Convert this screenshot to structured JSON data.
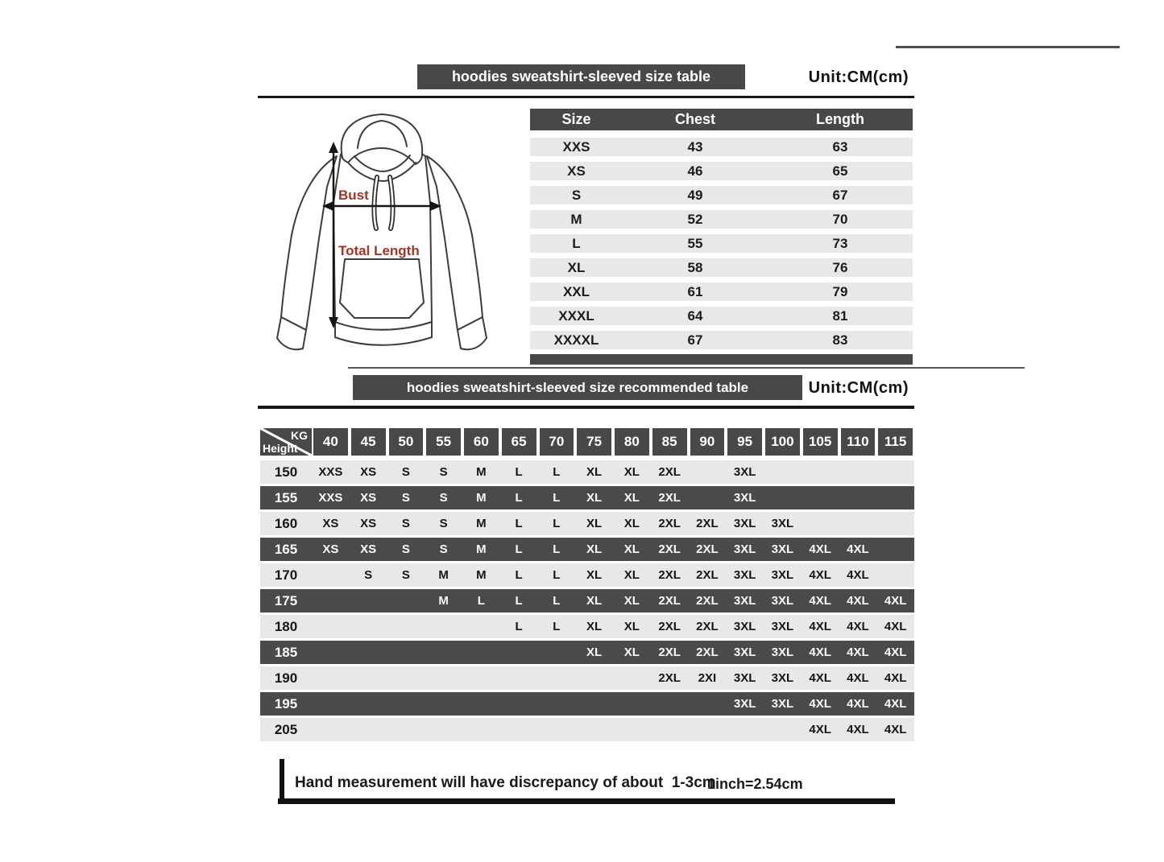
{
  "ui": {
    "unit_label": "Unit:CM(cm)"
  },
  "diagram": {
    "bust_label": "Bust",
    "total_length_label": "Total Length"
  },
  "footer": {
    "note": "Hand measurement will have discrepancy of about  1-3cm",
    "conversion": "1inch=2.54cm"
  },
  "colors": {
    "dark_bar": "#484848",
    "light_row": "#e8e8e8",
    "accent_red": "#a93226"
  },
  "chart_data": [
    {
      "type": "table",
      "title": "hoodies sweatshirt-sleeved size  table",
      "unit": "CM(cm)",
      "columns": [
        "Size",
        "Chest",
        "Length"
      ],
      "rows": [
        [
          "XXS",
          43,
          63
        ],
        [
          "XS",
          46,
          65
        ],
        [
          "S",
          49,
          67
        ],
        [
          "M",
          52,
          70
        ],
        [
          "L",
          55,
          73
        ],
        [
          "XL",
          58,
          76
        ],
        [
          "XXL",
          61,
          79
        ],
        [
          "XXXL",
          64,
          81
        ],
        [
          "XXXXL",
          67,
          83
        ]
      ]
    },
    {
      "type": "table",
      "title": "hoodies sweatshirt-sleeved size recommended table",
      "unit": "CM(cm)",
      "x_axis_label": "KG",
      "y_axis_label": "Height",
      "weight_columns_kg": [
        40,
        45,
        50,
        55,
        60,
        65,
        70,
        75,
        80,
        85,
        90,
        95,
        100,
        105,
        110,
        115
      ],
      "rows": [
        {
          "height_cm": 150,
          "sizes": [
            "XXS",
            "XS",
            "S",
            "S",
            "M",
            "L",
            "L",
            "XL",
            "XL",
            "2XL",
            "",
            "3XL",
            "",
            "",
            "",
            ""
          ]
        },
        {
          "height_cm": 155,
          "sizes": [
            "XXS",
            "XS",
            "S",
            "S",
            "M",
            "L",
            "L",
            "XL",
            "XL",
            "2XL",
            "",
            "3XL",
            "",
            "",
            "",
            ""
          ]
        },
        {
          "height_cm": 160,
          "sizes": [
            "XS",
            "XS",
            "S",
            "S",
            "M",
            "L",
            "L",
            "XL",
            "XL",
            "2XL",
            "2XL",
            "3XL",
            "3XL",
            "",
            "",
            ""
          ]
        },
        {
          "height_cm": 165,
          "sizes": [
            "XS",
            "XS",
            "S",
            "S",
            "M",
            "L",
            "L",
            "XL",
            "XL",
            "2XL",
            "2XL",
            "3XL",
            "3XL",
            "4XL",
            "4XL",
            ""
          ]
        },
        {
          "height_cm": 170,
          "sizes": [
            "",
            "S",
            "S",
            "M",
            "M",
            "L",
            "L",
            "XL",
            "XL",
            "2XL",
            "2XL",
            "3XL",
            "3XL",
            "4XL",
            "4XL",
            ""
          ]
        },
        {
          "height_cm": 175,
          "sizes": [
            "",
            "",
            "",
            "M",
            "L",
            "L",
            "L",
            "XL",
            "XL",
            "2XL",
            "2XL",
            "3XL",
            "3XL",
            "4XL",
            "4XL",
            "4XL"
          ]
        },
        {
          "height_cm": 180,
          "sizes": [
            "",
            "",
            "",
            "",
            "",
            "L",
            "L",
            "XL",
            "XL",
            "2XL",
            "2XL",
            "3XL",
            "3XL",
            "4XL",
            "4XL",
            "4XL"
          ]
        },
        {
          "height_cm": 185,
          "sizes": [
            "",
            "",
            "",
            "",
            "",
            "",
            "",
            "XL",
            "XL",
            "2XL",
            "2XL",
            "3XL",
            "3XL",
            "4XL",
            "4XL",
            "4XL"
          ]
        },
        {
          "height_cm": 190,
          "sizes": [
            "",
            "",
            "",
            "",
            "",
            "",
            "",
            "",
            "",
            "2XL",
            "2XI",
            "3XL",
            "3XL",
            "4XL",
            "4XL",
            "4XL"
          ]
        },
        {
          "height_cm": 195,
          "sizes": [
            "",
            "",
            "",
            "",
            "",
            "",
            "",
            "",
            "",
            "",
            "",
            "3XL",
            "3XL",
            "4XL",
            "4XL",
            "4XL"
          ]
        },
        {
          "height_cm": 205,
          "sizes": [
            "",
            "",
            "",
            "",
            "",
            "",
            "",
            "",
            "",
            "",
            "",
            "",
            "",
            "4XL",
            "4XL",
            "4XL"
          ]
        }
      ]
    }
  ]
}
